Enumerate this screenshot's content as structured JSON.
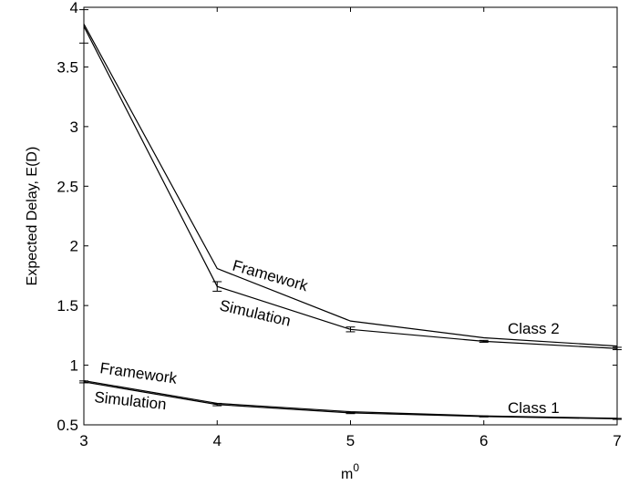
{
  "chart_data": {
    "type": "line",
    "xlabel": "m",
    "xlabel_superscript": "0",
    "ylabel": "Expected Delay, E(D)",
    "xlim": [
      3,
      7
    ],
    "ylim": [
      0.5,
      4
    ],
    "xticks": [
      "3",
      "4",
      "5",
      "6",
      "7"
    ],
    "yticks": [
      "0.5",
      "1",
      "1.5",
      "2",
      "2.5",
      "3",
      "3.5",
      "4"
    ],
    "x": [
      3,
      4,
      5,
      6,
      7
    ],
    "series": [
      {
        "group": "Class 2",
        "kind": "framework",
        "values": [
          3.86,
          1.81,
          1.37,
          1.23,
          1.16
        ]
      },
      {
        "group": "Class 2",
        "kind": "simulation",
        "values": [
          3.84,
          1.66,
          1.3,
          1.2,
          1.14
        ],
        "error": [
          0.14,
          0.04,
          0.02,
          0.008,
          0.01
        ]
      },
      {
        "group": "Class 1",
        "kind": "framework",
        "values": [
          0.87,
          0.68,
          0.61,
          0.575,
          0.555
        ]
      },
      {
        "group": "Class 1",
        "kind": "simulation",
        "values": [
          0.86,
          0.67,
          0.6,
          0.57,
          0.55
        ],
        "error": [
          0.008,
          0.01,
          0.006,
          0.004,
          0.004
        ]
      }
    ],
    "annotations": {
      "framework_upper": "Framework",
      "simulation_upper": "Simulation",
      "class2": "Class 2",
      "framework_lower": "Framework",
      "simulation_lower": "Simulation",
      "class1": "Class 1"
    },
    "grid": false,
    "legend": "none"
  }
}
